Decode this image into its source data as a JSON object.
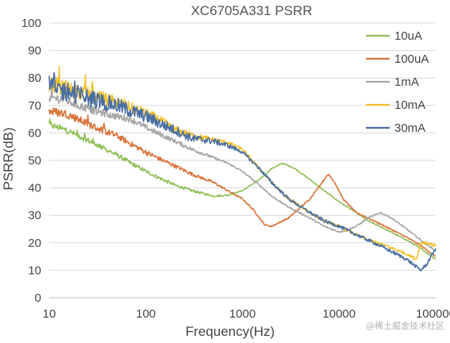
{
  "chart_data": {
    "type": "line",
    "title": "XC6705A331 PSRR",
    "xlabel": "Frequency(Hz)",
    "ylabel": "PSRR(dB)",
    "x_scale": "log",
    "xlim": [
      10,
      100000
    ],
    "ylim": [
      0,
      100
    ],
    "x_ticks": [
      10,
      100,
      1000,
      10000,
      100000
    ],
    "x_tick_labels": [
      "10",
      "100",
      "1000",
      "10000",
      "100000"
    ],
    "y_ticks": [
      0,
      10,
      20,
      30,
      40,
      50,
      60,
      70,
      80,
      90,
      100
    ],
    "y_tick_labels": [
      "0",
      "10",
      "20",
      "30",
      "40",
      "50",
      "60",
      "70",
      "80",
      "90",
      "100"
    ],
    "grid": "horizontal",
    "legend_position": "top-right",
    "watermark": "@稀土掘金技术社区",
    "series": [
      {
        "name": "10uA",
        "color": "#8fbf56",
        "noise": 1.2,
        "x": [
          10,
          15,
          20,
          30,
          50,
          70,
          100,
          150,
          200,
          300,
          500,
          700,
          1000,
          1500,
          2000,
          2600,
          3500,
          5000,
          7000,
          10000,
          15000,
          20000,
          30000,
          50000,
          70000,
          100000
        ],
        "y": [
          63,
          61,
          59,
          56,
          52,
          49,
          46,
          43,
          41,
          39,
          37,
          37.3,
          39,
          43,
          47,
          49,
          47,
          43,
          39,
          35,
          31,
          28,
          25,
          21,
          18,
          14
        ]
      },
      {
        "name": "100uA",
        "color": "#d9733a",
        "noise": 1.6,
        "x": [
          10,
          15,
          20,
          30,
          50,
          70,
          100,
          150,
          200,
          300,
          500,
          700,
          1000,
          1300,
          1700,
          2000,
          3000,
          5000,
          7000,
          7800,
          9000,
          11000,
          15000,
          20000,
          30000,
          50000,
          70000,
          100000
        ],
        "y": [
          68,
          67,
          65,
          62,
          59,
          56,
          53,
          50,
          48,
          45,
          42,
          39,
          36,
          32,
          26.5,
          26,
          29,
          36,
          43,
          45,
          42,
          36,
          31,
          29,
          26,
          22,
          19,
          15
        ]
      },
      {
        "name": "1mA",
        "color": "#a6a6a6",
        "noise": 1.8,
        "x": [
          10,
          15,
          20,
          30,
          50,
          70,
          100,
          150,
          200,
          300,
          500,
          700,
          1000,
          1500,
          2000,
          3000,
          5000,
          7000,
          10000,
          12000,
          15000,
          20000,
          27000,
          35000,
          50000,
          70000,
          100000
        ],
        "y": [
          73,
          72,
          70,
          68,
          66,
          65,
          62,
          59,
          57,
          54,
          51,
          49,
          46,
          41,
          37,
          33,
          29,
          26,
          24,
          24.5,
          26,
          29,
          31,
          29,
          25,
          21,
          17
        ]
      },
      {
        "name": "10mA",
        "color": "#f0c12c",
        "noise": 3.5,
        "x": [
          10,
          15,
          20,
          30,
          50,
          70,
          100,
          150,
          200,
          300,
          500,
          700,
          1000,
          1500,
          2000,
          3000,
          5000,
          7000,
          10000,
          15000,
          20000,
          30000,
          50000,
          63000,
          70000,
          80000,
          100000
        ],
        "y": [
          78,
          76,
          75,
          73,
          71,
          69,
          67,
          64,
          61,
          59,
          57.5,
          56.5,
          54,
          47,
          42,
          36,
          31,
          28,
          26,
          23,
          21,
          19,
          16,
          14,
          20,
          20,
          19
        ]
      },
      {
        "name": "30mA",
        "color": "#4a6fa5",
        "noise": 4.0,
        "x": [
          10,
          15,
          20,
          30,
          50,
          70,
          100,
          150,
          200,
          300,
          500,
          700,
          1000,
          1500,
          2000,
          3000,
          5000,
          7000,
          10000,
          15000,
          20000,
          30000,
          50000,
          70000,
          80000,
          100000
        ],
        "y": [
          77,
          75,
          74,
          72,
          70,
          68,
          66,
          63,
          61,
          58,
          57,
          55.5,
          53,
          47,
          42,
          36,
          31,
          28,
          26,
          23,
          21,
          18,
          14,
          10,
          12,
          18
        ]
      }
    ]
  }
}
